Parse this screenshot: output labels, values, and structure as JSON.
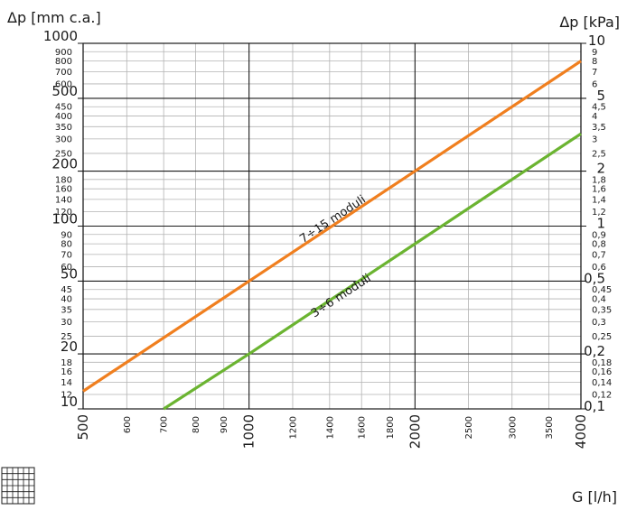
{
  "chart_data": {
    "type": "line",
    "title": "",
    "ylabel_left": "Δp [mm c.a.]",
    "ylabel_right": "Δp [kPa]",
    "xlabel": "G [l/h]",
    "x_scale": "log",
    "y_scale": "log",
    "xlim": [
      500,
      4000
    ],
    "ylim_left": [
      10,
      1000
    ],
    "ylim_right": [
      0.1,
      10
    ],
    "grid": true,
    "x_ticks_major": [
      "500",
      "1000",
      "2000",
      "4000"
    ],
    "x_ticks_minor": [
      "600",
      "700",
      "800",
      "900",
      "1200",
      "1400",
      "1600",
      "1800",
      "2500",
      "3000",
      "3500"
    ],
    "y_left_ticks_major": [
      "10",
      "20",
      "50",
      "100",
      "200",
      "500",
      "1000"
    ],
    "y_left_ticks_minor": [
      "12",
      "14",
      "16",
      "18",
      "25",
      "30",
      "35",
      "40",
      "45",
      "60",
      "70",
      "80",
      "90",
      "120",
      "140",
      "160",
      "180",
      "250",
      "300",
      "350",
      "400",
      "450",
      "600",
      "700",
      "800",
      "900"
    ],
    "y_right_ticks_major": [
      "0,1",
      "0,2",
      "0,5",
      "1",
      "2",
      "5",
      "10"
    ],
    "y_right_ticks_minor": [
      "0,12",
      "0,14",
      "0,16",
      "0,18",
      "0,25",
      "0,3",
      "0,35",
      "0,4",
      "0,45",
      "0,6",
      "0,7",
      "0,8",
      "0,9",
      "1,2",
      "1,4",
      "1,6",
      "1,8",
      "2,5",
      "3",
      "3,5",
      "4",
      "4,5",
      "6",
      "7",
      "8",
      "9"
    ],
    "series": [
      {
        "name": "7÷15 moduli",
        "color": "#f07f1f",
        "x": [
          500,
          1000,
          2000,
          4000
        ],
        "y": [
          12.5,
          50,
          200,
          800
        ]
      },
      {
        "name": "3÷6 moduli",
        "color": "#6bb431",
        "x": [
          700,
          1000,
          2000,
          4000
        ],
        "y": [
          10,
          20,
          80,
          320
        ]
      }
    ]
  }
}
